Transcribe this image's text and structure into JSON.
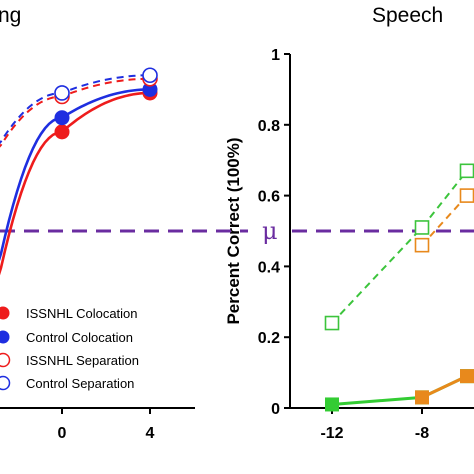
{
  "chart_data": [
    {
      "type": "line",
      "title": "ng",
      "x_ticks": [
        "0",
        "4"
      ],
      "threshold_line": {
        "y": 0.5,
        "color": "#6a2ca0",
        "style": "dashed"
      },
      "legend": {
        "placement": "bottom-left",
        "entries": [
          {
            "label": "ISSNHL Colocation",
            "color": "#ee1c1c",
            "marker": "filled-circle"
          },
          {
            "label": "Control Colocation",
            "color": "#1e2ee0",
            "marker": "filled-circle"
          },
          {
            "label": "ISSNHL Separation",
            "color": "#ee1c1c",
            "marker": "open-circle"
          },
          {
            "label": "Control Separation",
            "color": "#1e2ee0",
            "marker": "open-circle"
          }
        ]
      },
      "series": [
        {
          "name": "ISSNHL Colocation",
          "color": "#ee1c1c",
          "marker": "filled-circle",
          "line": "solid",
          "x": [
            0,
            4
          ],
          "y": [
            0.78,
            0.89
          ]
        },
        {
          "name": "Control Colocation",
          "color": "#1e2ee0",
          "marker": "filled-circle",
          "line": "solid",
          "x": [
            0,
            4
          ],
          "y": [
            0.82,
            0.9
          ]
        },
        {
          "name": "ISSNHL Separation",
          "color": "#ee1c1c",
          "marker": "open-circle",
          "line": "dashed",
          "x": [
            0,
            4
          ],
          "y": [
            0.88,
            0.93
          ]
        },
        {
          "name": "Control Separation",
          "color": "#1e2ee0",
          "marker": "open-circle",
          "line": "dashed",
          "x": [
            0,
            4
          ],
          "y": [
            0.89,
            0.94
          ]
        }
      ]
    },
    {
      "type": "line",
      "title": "Speech",
      "ylabel": "Percent Correct (100%)",
      "ylim": [
        0,
        1
      ],
      "y_ticks": [
        "0",
        "0.2",
        "0.4",
        "0.6",
        "0.8",
        "1"
      ],
      "x_ticks": [
        "-12",
        "-8"
      ],
      "threshold_line": {
        "y": 0.5,
        "label": "μ",
        "color": "#6a2ca0",
        "style": "dashed"
      },
      "series": [
        {
          "color": "#3cc43c",
          "marker": "open-square",
          "line": "dashed",
          "x": [
            -12,
            -8,
            -6
          ],
          "y": [
            0.24,
            0.51,
            0.67
          ]
        },
        {
          "color": "#e8891c",
          "marker": "open-square",
          "line": "dashed",
          "x": [
            -8,
            -6
          ],
          "y": [
            0.46,
            0.6
          ]
        },
        {
          "color": "#33cc33",
          "marker": "filled-square",
          "line": "solid",
          "x": [
            -12,
            -8,
            -6
          ],
          "y": [
            0.01,
            0.03,
            0.09
          ]
        },
        {
          "color": "#e8891c",
          "marker": "filled-square",
          "line": "solid",
          "x": [
            -8,
            -6
          ],
          "y": [
            0.03,
            0.09
          ]
        }
      ]
    }
  ]
}
